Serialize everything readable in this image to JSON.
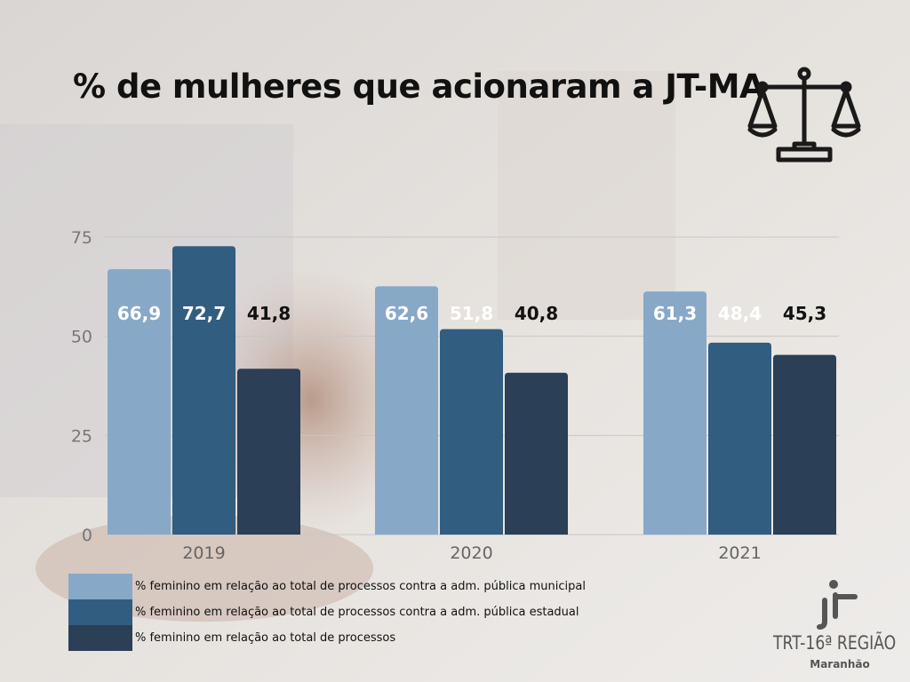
{
  "title": "% de mulheres que acionaram a JT-MA",
  "colors": {
    "series1": "#88a8c8",
    "series2": "#315d80",
    "series3": "#2b3f56",
    "label_on_light": "#ffffff",
    "label_dark": "#111111"
  },
  "chart_data": {
    "type": "bar",
    "title": "% de mulheres que acionaram a JT-MA",
    "categories": [
      "2019",
      "2020",
      "2021"
    ],
    "series": [
      {
        "name": "% feminino em relação ao total de processos contra a adm. pública municipal",
        "values": [
          66.9,
          62.6,
          61.3
        ],
        "labels": [
          "66,9",
          "62,6",
          "61,3"
        ]
      },
      {
        "name": "% feminino em relação ao total de processos contra a adm. pública estadual",
        "values": [
          72.7,
          51.8,
          48.4
        ],
        "labels": [
          "72,7",
          "51,8",
          "48,4"
        ]
      },
      {
        "name": "% feminino em relação ao total de processos",
        "values": [
          41.8,
          40.8,
          45.3
        ],
        "labels": [
          "41,8",
          "40,8",
          "45,3"
        ]
      }
    ],
    "y_ticks": [
      "0",
      "25",
      "50",
      "75"
    ],
    "ylim": [
      0,
      75
    ],
    "grid": true,
    "legend_position": "bottom-left"
  },
  "icons": {
    "scale": "scales-of-justice-icon",
    "logo": "trt-logo-icon"
  },
  "logo": {
    "name": "TRT-16ª REGIÃO",
    "subtitle": "Maranhão"
  }
}
